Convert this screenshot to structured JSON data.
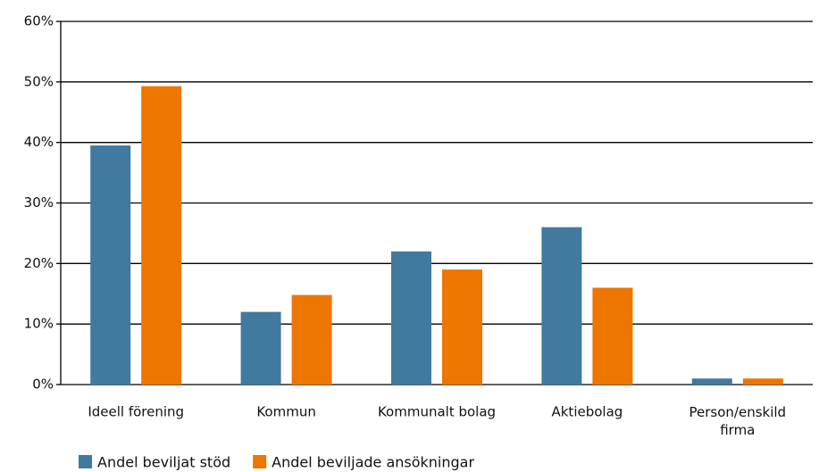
{
  "chart_data": {
    "type": "bar",
    "categories": [
      "Ideell förening",
      "Kommun",
      "Kommunalt bolag",
      "Aktiebolag",
      "Person/enskild firma"
    ],
    "series": [
      {
        "name": "Andel beviljat stöd",
        "color": "#41799f",
        "values": [
          39.5,
          12,
          22,
          26,
          1
        ]
      },
      {
        "name": "Andel beviljade ansökningar",
        "color": "#ed7600",
        "values": [
          49.3,
          14.8,
          19,
          16,
          1
        ]
      }
    ],
    "ylim": [
      0,
      60
    ],
    "yticks": [
      {
        "value": 0,
        "label": "0%"
      },
      {
        "value": 10,
        "label": "10%"
      },
      {
        "value": 20,
        "label": "20%"
      },
      {
        "value": 30,
        "label": "30%"
      },
      {
        "value": 40,
        "label": "40%"
      },
      {
        "value": 50,
        "label": "50%"
      },
      {
        "value": 60,
        "label": "60%"
      }
    ],
    "grid": true,
    "legend": "bottom-left"
  }
}
